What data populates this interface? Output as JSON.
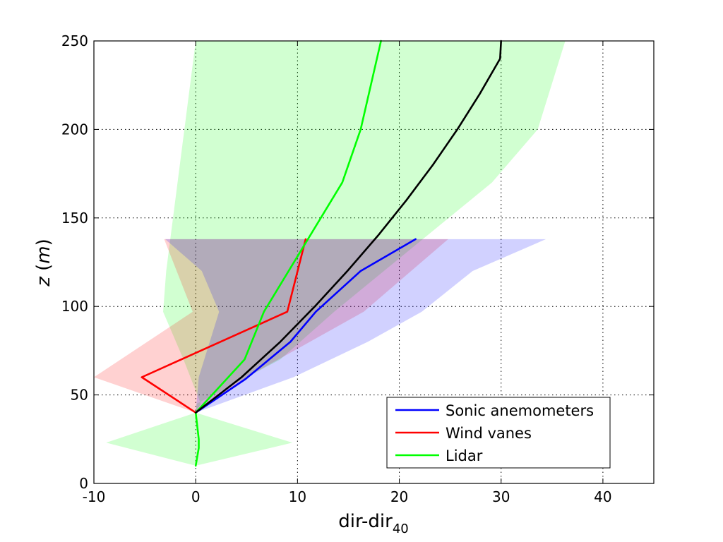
{
  "chart_data": {
    "type": "line",
    "title": "",
    "xlabel": "dir-dir",
    "xlabel_sub": "40",
    "ylabel_var": "z",
    "ylabel_unit": "m",
    "xlim": [
      -10,
      45
    ],
    "ylim": [
      0,
      250
    ],
    "xticks": [
      -10,
      0,
      10,
      20,
      30,
      40
    ],
    "yticks": [
      0,
      50,
      100,
      150,
      200,
      250
    ],
    "grid": true,
    "legend_position": "bottom-right",
    "series": [
      {
        "name": "Sonic anemometers",
        "color": "#0000ff",
        "points": [
          [
            0,
            40
          ],
          [
            4.9,
            59
          ],
          [
            9.3,
            80
          ],
          [
            11.8,
            97
          ],
          [
            16.2,
            120
          ],
          [
            21.6,
            138
          ]
        ],
        "band": [
          [
            0,
            40
          ],
          [
            9.6,
            60
          ],
          [
            16.9,
            80
          ],
          [
            22.2,
            97
          ],
          [
            27.2,
            120
          ],
          [
            34.4,
            138
          ],
          [
            -3.0,
            138
          ],
          [
            0.6,
            120
          ],
          [
            2.3,
            97
          ],
          [
            0.3,
            60
          ]
        ]
      },
      {
        "name": "Wind vanes",
        "color": "#ff0000",
        "points": [
          [
            0,
            40
          ],
          [
            -5.3,
            60
          ],
          [
            9.0,
            97
          ],
          [
            10.8,
            138
          ]
        ],
        "band": [
          [
            0,
            40
          ],
          [
            5.0,
            60
          ],
          [
            16.5,
            97
          ],
          [
            24.8,
            138
          ],
          [
            -3.1,
            138
          ],
          [
            -0.3,
            97
          ],
          [
            -10,
            60
          ]
        ]
      },
      {
        "name": "Lidar",
        "color": "#00ff00",
        "points": [
          [
            0,
            10
          ],
          [
            0.3,
            20
          ],
          [
            0.3,
            25
          ],
          [
            0,
            40
          ],
          [
            4.8,
            70
          ],
          [
            6.7,
            97
          ],
          [
            14.4,
            170
          ],
          [
            16.2,
            200
          ],
          [
            18.2,
            250
          ]
        ],
        "band": [
          [
            0,
            10
          ],
          [
            9.5,
            23
          ],
          [
            0,
            40
          ],
          [
            0.1,
            45
          ],
          [
            8.3,
            70
          ],
          [
            13.6,
            97
          ],
          [
            29.1,
            170
          ],
          [
            33.6,
            200
          ],
          [
            36.3,
            250
          ],
          [
            0,
            250
          ],
          [
            -2.9,
            120
          ],
          [
            -3.2,
            97
          ],
          [
            -1.2,
            70
          ],
          [
            0.5,
            45
          ],
          [
            0,
            40
          ],
          [
            -8.8,
            23
          ]
        ]
      },
      {
        "name": "",
        "color": "#000000",
        "style": "model",
        "points": [
          [
            0,
            40
          ],
          [
            4.5,
            60
          ],
          [
            8.3,
            80
          ],
          [
            11.7,
            100
          ],
          [
            14.9,
            120
          ],
          [
            17.9,
            140
          ],
          [
            20.7,
            160
          ],
          [
            23.3,
            180
          ],
          [
            25.7,
            200
          ],
          [
            27.9,
            220
          ],
          [
            29.9,
            240
          ],
          [
            30.0,
            250
          ]
        ]
      }
    ]
  }
}
